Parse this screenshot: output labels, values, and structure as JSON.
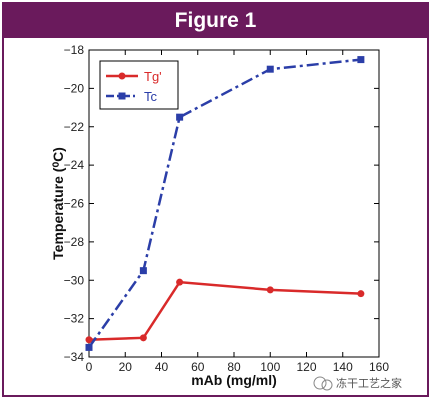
{
  "figure": {
    "title": "Figure 1"
  },
  "watermark": {
    "text": "冻干工艺之家"
  },
  "chart_data": {
    "type": "line",
    "xlabel": "mAb (mg/ml)",
    "ylabel": "Temperature (⁰C)",
    "xlim": [
      0,
      160
    ],
    "ylim": [
      -34,
      -18
    ],
    "xticks": [
      0,
      20,
      40,
      60,
      80,
      100,
      120,
      140,
      160
    ],
    "yticks": [
      -34,
      -32,
      -30,
      -28,
      -26,
      -24,
      -22,
      -20,
      -18
    ],
    "grid": false,
    "legend_position": "top-left",
    "series": [
      {
        "name": "Tg'",
        "color": "#d92a2a",
        "marker": "circle",
        "dash": "solid",
        "x": [
          0,
          30,
          50,
          100,
          150
        ],
        "y": [
          -33.1,
          -33.0,
          -30.1,
          -30.5,
          -30.7
        ]
      },
      {
        "name": "Tc",
        "color": "#2b3ea8",
        "marker": "square",
        "dash": "dashdot",
        "x": [
          0,
          30,
          50,
          100,
          150
        ],
        "y": [
          -33.5,
          -29.5,
          -21.5,
          -19.0,
          -18.5
        ]
      }
    ]
  }
}
